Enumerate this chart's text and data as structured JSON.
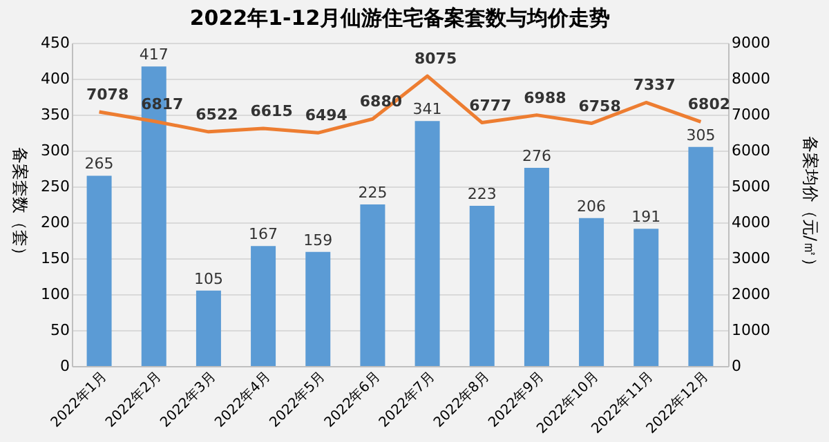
{
  "chart_data": {
    "type": "bar",
    "title": "2022年1-12月仙游住宅备案套数与均价走势",
    "ylabel": "备案套数（套）",
    "y2label": "备案均价（元/㎡）",
    "categories": [
      "2022年1月",
      "2022年2月",
      "2022年3月",
      "2022年4月",
      "2022年5月",
      "2022年6月",
      "2022年7月",
      "2022年8月",
      "2022年9月",
      "2022年10月",
      "2022年11月",
      "2022年12月"
    ],
    "series": [
      {
        "color": "#5b9bd5",
        "values": [
          265,
          417,
          105,
          167,
          159,
          225,
          341,
          223,
          276,
          206,
          191,
          305
        ]
      },
      {
        "type": "line",
        "axis": "y2",
        "color": "#ed7d31",
        "values": [
          7078,
          6817,
          6522,
          6615,
          6494,
          6880,
          8075,
          6777,
          6988,
          6758,
          7337,
          6802
        ]
      }
    ],
    "ylim": [
      0,
      450
    ],
    "yticks": [
      0,
      50,
      100,
      150,
      200,
      250,
      300,
      350,
      400,
      450
    ],
    "y2lim": [
      0,
      9000
    ],
    "y2ticks": [
      0,
      1000,
      2000,
      3000,
      4000,
      5000,
      6000,
      7000,
      8000,
      9000
    ],
    "grid": "y",
    "data_labels": true,
    "marker": "none",
    "line_style": "solid"
  }
}
